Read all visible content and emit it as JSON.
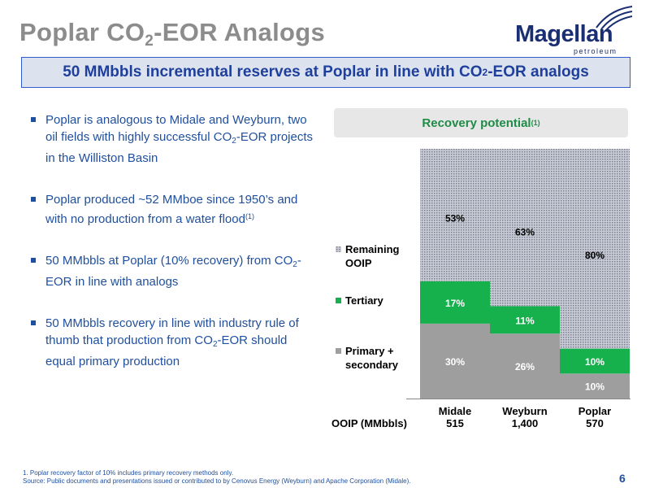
{
  "slide": {
    "title_pre": "Poplar CO",
    "title_sub": "2",
    "title_post": "-EOR Analogs",
    "banner_pre": "50 MMbbls incremental reserves at Poplar in line with CO",
    "banner_sub": "2",
    "banner_post": "-EOR analogs",
    "page_number": "6"
  },
  "logo": {
    "word": "Magellan",
    "sub": "petroleum"
  },
  "bullets": [
    {
      "pre": "Poplar is analogous to Midale and Weyburn, two oil fields with highly successful CO",
      "sub": "2",
      "post": "-EOR projects in the Williston Basin",
      "sup": ""
    },
    {
      "pre": "Poplar produced ~52 MMboe since 1950’s and with no production from a water flood",
      "sub": "",
      "post": "",
      "sup": "(1)"
    },
    {
      "pre": "50 MMbbls at Poplar (10% recovery) from CO",
      "sub": "2",
      "post": "-EOR in line with analogs",
      "sup": ""
    },
    {
      "pre": "50 MMbbls recovery in line with industry rule of thumb that production from CO",
      "sub": "2",
      "post": "-EOR should equal primary production",
      "sup": ""
    }
  ],
  "footnotes": {
    "line1": "1. Poplar recovery factor of 10% includes primary recovery methods only.",
    "line2": "Source: Public documents and presentations issued or contributed to by Cenovus Energy (Weyburn) and Apache Corporation (Midale)."
  },
  "colors": {
    "primary": "#9e9e9e",
    "tertiary": "#16b14c",
    "remaining": "#c9ccd6",
    "remaining_dots": "#7c8090",
    "title_blue": "#1e3f9c",
    "chart_title_green": "#1e8c46"
  },
  "chart_data": {
    "type": "bar",
    "stacked": true,
    "title": "Recovery potential",
    "title_sup": "(1)",
    "categories": [
      "Midale",
      "Weyburn",
      "Poplar"
    ],
    "category_values": [
      "515",
      "1,400",
      "570"
    ],
    "category_value_label": "OOIP (MMbbls)",
    "ylim": [
      0,
      100
    ],
    "series": [
      {
        "name": "Primary + secondary",
        "legend_lines": [
          "Primary +",
          "secondary"
        ],
        "values": [
          30,
          26,
          10
        ],
        "labels": [
          "30%",
          "26%",
          "10%"
        ]
      },
      {
        "name": "Tertiary",
        "legend_lines": [
          "Tertiary"
        ],
        "values": [
          17,
          11,
          10
        ],
        "labels": [
          "17%",
          "11%",
          "10%"
        ]
      },
      {
        "name": "Remaining OOIP",
        "legend_lines": [
          "Remaining",
          "OOIP"
        ],
        "values": [
          53,
          63,
          80
        ],
        "labels": [
          "53%",
          "63%",
          "80%"
        ]
      }
    ],
    "legend_position": "left",
    "grid": false
  }
}
